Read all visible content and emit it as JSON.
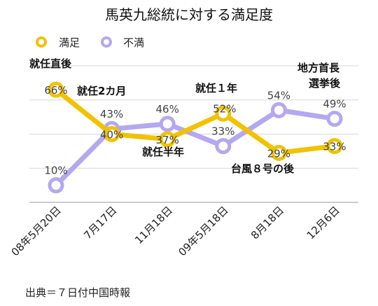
{
  "chart_data": {
    "type": "line",
    "title": "馬英九総統に対する満足度",
    "categories": [
      "08年5月20日",
      "7月17日",
      "11月18日",
      "09年5月18日",
      "8月18日",
      "12月6日"
    ],
    "series": [
      {
        "name": "満足",
        "color": "#f2c200",
        "values": [
          66,
          40,
          37,
          52,
          29,
          33
        ]
      },
      {
        "name": "不満",
        "color": "#b4a8ef",
        "values": [
          10,
          43,
          46,
          33,
          54,
          49
        ]
      }
    ],
    "ylim": [
      0,
      80
    ],
    "grid": true,
    "legend": "top-left"
  },
  "value_labels": {
    "satisfied": [
      "66%",
      "40%",
      "37%",
      "52%",
      "29%",
      "33%"
    ],
    "dissatisfied": [
      "10%",
      "43%",
      "46%",
      "33%",
      "54%",
      "49%"
    ]
  },
  "annotations": [
    "就任直後",
    "就任2カ月",
    "就任半年",
    "就任１年",
    "台風８号の後",
    "地方首長",
    "選挙後"
  ],
  "source": "出典＝７日付中国時報"
}
